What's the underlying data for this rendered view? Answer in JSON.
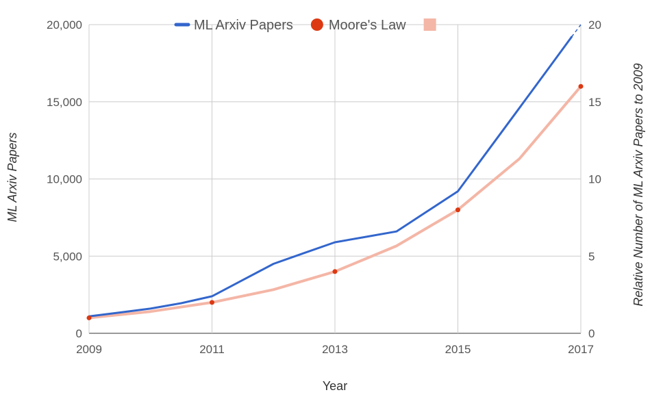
{
  "chart_data": {
    "type": "line",
    "x_label": "Year",
    "y_label_left": "ML Arxiv Papers",
    "y_label_right": "Relative Number of ML Arxiv Papers  to 2009",
    "x_ticks": [
      "2009",
      "2011",
      "2013",
      "2015",
      "2017"
    ],
    "y_ticks_left": [
      "0",
      "5,000",
      "10,000",
      "15,000",
      "20,000"
    ],
    "y_ticks_right": [
      "0",
      "5",
      "10",
      "15",
      "20"
    ],
    "xlim": [
      2009,
      2017
    ],
    "ylim_left": [
      0,
      20000
    ],
    "ylim_right": [
      0,
      20
    ],
    "grid": true,
    "legend_position": "top",
    "legend": [
      {
        "label": "ML Arxiv Papers",
        "marker": "line",
        "color": "#3366cc"
      },
      {
        "label": "Moore's Law",
        "marker": "circle",
        "color": "#dc3912"
      },
      {
        "label": "",
        "marker": "square",
        "color": "#f4b6a6"
      }
    ],
    "series": [
      {
        "name": "ML Arxiv Papers",
        "axis": "left",
        "color": "#3366cc",
        "x": [
          2009,
          2009.5,
          2010,
          2010.5,
          2011,
          2011.5,
          2012,
          2012.5,
          2013,
          2013.5,
          2014,
          2014.5,
          2015,
          2015.5,
          2016,
          2016.5,
          2016.85
        ],
        "y": [
          1100,
          1350,
          1600,
          1950,
          2400,
          3450,
          4500,
          5200,
          5900,
          6250,
          6600,
          7900,
          9200,
          11900,
          14600,
          17300,
          19200
        ],
        "projection": {
          "x": [
            2016.85,
            2017
          ],
          "y": [
            19200,
            20000
          ],
          "style": "dashed"
        }
      },
      {
        "name": "Moore's Law",
        "axis": "right",
        "color": "#dc3912",
        "x": [
          2009,
          2011,
          2013,
          2015,
          2017
        ],
        "y": [
          1,
          2,
          4,
          8,
          16
        ]
      },
      {
        "name": "",
        "axis": "right",
        "color": "#f4b6a6",
        "x": [
          2009,
          2010,
          2011,
          2012,
          2013,
          2014,
          2015,
          2016,
          2017
        ],
        "y": [
          1,
          1.41,
          2,
          2.83,
          4,
          5.66,
          8,
          11.31,
          16
        ]
      }
    ]
  }
}
